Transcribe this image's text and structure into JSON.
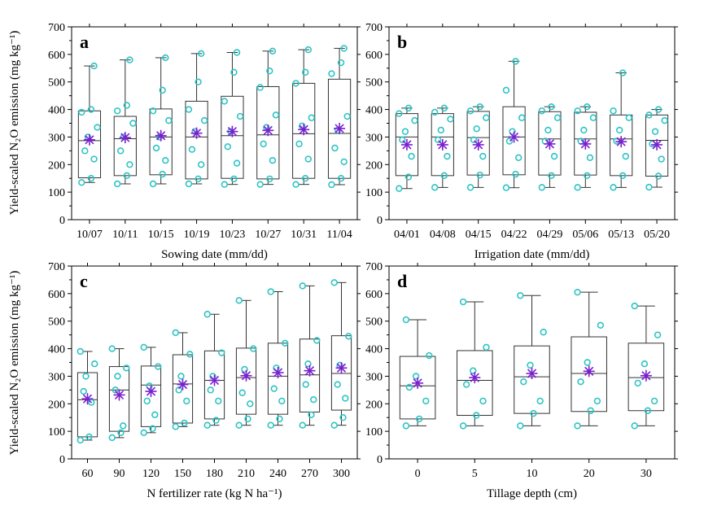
{
  "chart_data": [
    {
      "id": "a",
      "panel_label": "a",
      "type": "box",
      "xlabel": "Sowing date (mm/dd)",
      "ylabel": "Yield-scaled N₂O emission (mg kg⁻¹)",
      "ylim": [
        0,
        700
      ],
      "yticks": [
        0,
        100,
        200,
        300,
        400,
        500,
        600,
        700
      ],
      "categories": [
        "10/07",
        "10/11",
        "10/15",
        "10/19",
        "10/23",
        "10/27",
        "10/31",
        "11/04"
      ],
      "boxes": [
        {
          "min": 135,
          "q1": 152,
          "median": 287,
          "q3": 395,
          "max": 558,
          "mean": 290
        },
        {
          "min": 130,
          "q1": 160,
          "median": 294,
          "q3": 375,
          "max": 580,
          "mean": 298
        },
        {
          "min": 130,
          "q1": 163,
          "median": 300,
          "q3": 402,
          "max": 588,
          "mean": 305
        },
        {
          "min": 130,
          "q1": 148,
          "median": 300,
          "q3": 430,
          "max": 603,
          "mean": 314
        },
        {
          "min": 128,
          "q1": 150,
          "median": 305,
          "q3": 448,
          "max": 607,
          "mean": 320
        },
        {
          "min": 128,
          "q1": 148,
          "median": 308,
          "q3": 483,
          "max": 612,
          "mean": 324
        },
        {
          "min": 128,
          "q1": 150,
          "median": 312,
          "q3": 495,
          "max": 617,
          "mean": 327
        },
        {
          "min": 127,
          "q1": 150,
          "median": 313,
          "q3": 510,
          "max": 622,
          "mean": 331
        }
      ],
      "points": [
        [
          135,
          150,
          220,
          250,
          300,
          335,
          390,
          400,
          558
        ],
        [
          130,
          160,
          200,
          250,
          300,
          350,
          395,
          415,
          580
        ],
        [
          130,
          165,
          215,
          260,
          300,
          360,
          395,
          470,
          588
        ],
        [
          130,
          148,
          200,
          255,
          320,
          360,
          400,
          500,
          603
        ],
        [
          128,
          148,
          205,
          265,
          320,
          375,
          430,
          535,
          607
        ],
        [
          128,
          148,
          215,
          275,
          335,
          380,
          480,
          540,
          612
        ],
        [
          128,
          150,
          220,
          275,
          340,
          370,
          495,
          535,
          617
        ],
        [
          127,
          150,
          210,
          260,
          325,
          375,
          530,
          570,
          622
        ]
      ]
    },
    {
      "id": "b",
      "panel_label": "b",
      "type": "box",
      "xlabel": "Irrigation date (mm/dd)",
      "ylabel": "",
      "ylim": [
        0,
        700
      ],
      "yticks": [
        0,
        100,
        200,
        300,
        400,
        500,
        600,
        700
      ],
      "categories": [
        "04/01",
        "04/08",
        "04/15",
        "04/22",
        "04/29",
        "05/06",
        "05/13",
        "05/20"
      ],
      "boxes": [
        {
          "min": 113,
          "q1": 160,
          "median": 300,
          "q3": 385,
          "max": 405,
          "mean": 272
        },
        {
          "min": 117,
          "q1": 160,
          "median": 300,
          "q3": 385,
          "max": 405,
          "mean": 272
        },
        {
          "min": 117,
          "q1": 162,
          "median": 298,
          "q3": 393,
          "max": 410,
          "mean": 272
        },
        {
          "min": 116,
          "q1": 163,
          "median": 300,
          "q3": 410,
          "max": 575,
          "mean": 300
        },
        {
          "min": 117,
          "q1": 162,
          "median": 293,
          "q3": 392,
          "max": 410,
          "mean": 275
        },
        {
          "min": 117,
          "q1": 162,
          "median": 293,
          "q3": 390,
          "max": 410,
          "mean": 275
        },
        {
          "min": 117,
          "q1": 160,
          "median": 293,
          "q3": 380,
          "max": 533,
          "mean": 283
        },
        {
          "min": 118,
          "q1": 158,
          "median": 288,
          "q3": 380,
          "max": 400,
          "mean": 272
        }
      ],
      "points": [
        [
          113,
          155,
          230,
          290,
          320,
          360,
          385,
          405
        ],
        [
          117,
          160,
          230,
          290,
          325,
          365,
          390,
          405
        ],
        [
          117,
          162,
          230,
          290,
          330,
          370,
          395,
          410
        ],
        [
          116,
          165,
          225,
          285,
          320,
          370,
          470,
          575
        ],
        [
          117,
          160,
          230,
          285,
          325,
          370,
          395,
          410
        ],
        [
          117,
          160,
          225,
          285,
          325,
          370,
          395,
          410
        ],
        [
          117,
          160,
          230,
          285,
          325,
          370,
          395,
          533
        ],
        [
          118,
          158,
          220,
          275,
          320,
          360,
          380,
          400
        ]
      ]
    },
    {
      "id": "c",
      "panel_label": "c",
      "type": "box",
      "xlabel": "N fertilizer rate (kg N ha⁻¹)",
      "ylabel": "Yield-scaled N₂O emission (mg kg⁻¹)",
      "ylim": [
        0,
        700
      ],
      "yticks": [
        0,
        100,
        200,
        300,
        400,
        500,
        600,
        700
      ],
      "categories": [
        "60",
        "90",
        "120",
        "150",
        "180",
        "210",
        "240",
        "270",
        "300"
      ],
      "boxes": [
        {
          "min": 68,
          "q1": 80,
          "median": 215,
          "q3": 313,
          "max": 390,
          "mean": 218
        },
        {
          "min": 77,
          "q1": 100,
          "median": 250,
          "q3": 335,
          "max": 400,
          "mean": 232
        },
        {
          "min": 95,
          "q1": 117,
          "median": 268,
          "q3": 337,
          "max": 405,
          "mean": 245
        },
        {
          "min": 117,
          "q1": 130,
          "median": 272,
          "q3": 378,
          "max": 458,
          "mean": 270
        },
        {
          "min": 122,
          "q1": 145,
          "median": 285,
          "q3": 392,
          "max": 525,
          "mean": 285
        },
        {
          "min": 122,
          "q1": 162,
          "median": 295,
          "q3": 402,
          "max": 575,
          "mean": 302
        },
        {
          "min": 122,
          "q1": 162,
          "median": 300,
          "q3": 420,
          "max": 607,
          "mean": 313
        },
        {
          "min": 122,
          "q1": 170,
          "median": 305,
          "q3": 435,
          "max": 628,
          "mean": 320
        },
        {
          "min": 122,
          "q1": 177,
          "median": 310,
          "q3": 447,
          "max": 640,
          "mean": 330
        }
      ],
      "points": [
        [
          68,
          80,
          205,
          245,
          300,
          345,
          390
        ],
        [
          77,
          95,
          120,
          250,
          300,
          330,
          400
        ],
        [
          95,
          110,
          160,
          210,
          265,
          335,
          405
        ],
        [
          117,
          130,
          210,
          250,
          300,
          380,
          458
        ],
        [
          122,
          140,
          210,
          250,
          300,
          385,
          525
        ],
        [
          122,
          145,
          200,
          240,
          325,
          400,
          575
        ],
        [
          122,
          145,
          210,
          255,
          330,
          420,
          607
        ],
        [
          122,
          160,
          215,
          270,
          345,
          430,
          628
        ],
        [
          122,
          150,
          220,
          270,
          340,
          445,
          640
        ]
      ]
    },
    {
      "id": "d",
      "panel_label": "d",
      "type": "box",
      "xlabel": "Tillage depth (cm)",
      "ylabel": "",
      "ylim": [
        0,
        700
      ],
      "yticks": [
        0,
        100,
        200,
        300,
        400,
        500,
        600,
        700
      ],
      "categories": [
        "0",
        "5",
        "10",
        "20",
        "30"
      ],
      "boxes": [
        {
          "min": 120,
          "q1": 145,
          "median": 265,
          "q3": 372,
          "max": 505,
          "mean": 275
        },
        {
          "min": 120,
          "q1": 158,
          "median": 285,
          "q3": 393,
          "max": 570,
          "mean": 295
        },
        {
          "min": 120,
          "q1": 165,
          "median": 298,
          "q3": 410,
          "max": 593,
          "mean": 310
        },
        {
          "min": 120,
          "q1": 172,
          "median": 310,
          "q3": 443,
          "max": 605,
          "mean": 318
        },
        {
          "min": 120,
          "q1": 175,
          "median": 295,
          "q3": 420,
          "max": 555,
          "mean": 302
        }
      ],
      "points": [
        [
          120,
          145,
          210,
          260,
          300,
          375,
          505
        ],
        [
          120,
          158,
          210,
          270,
          320,
          405,
          570
        ],
        [
          120,
          165,
          210,
          280,
          340,
          460,
          593
        ],
        [
          120,
          175,
          210,
          280,
          350,
          485,
          605
        ],
        [
          120,
          175,
          210,
          275,
          345,
          450,
          555
        ]
      ]
    }
  ],
  "colors": {
    "point": "#2ec4c4",
    "mean": "#7a1fcf",
    "box": "#333333"
  }
}
